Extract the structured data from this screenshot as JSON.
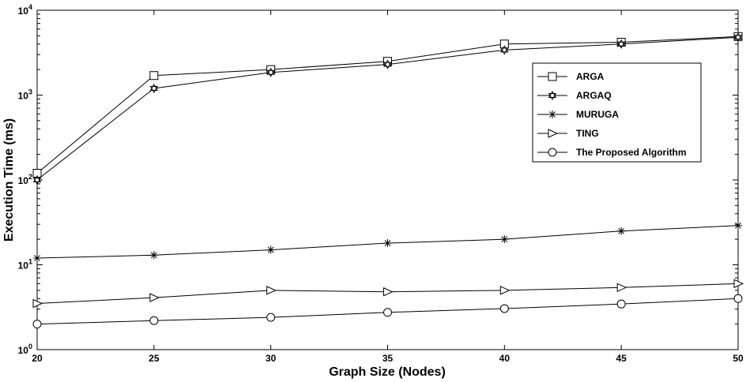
{
  "chart_data": {
    "type": "line",
    "xlabel": "Graph Size (Nodes)",
    "ylabel": "Execution Time (ms)",
    "x": [
      20,
      25,
      30,
      35,
      40,
      45,
      50
    ],
    "xlim": [
      20,
      50
    ],
    "ylim": [
      1,
      10000
    ],
    "yscale": "log",
    "x_ticks": [
      20,
      25,
      30,
      35,
      40,
      45,
      50
    ],
    "y_ticks": [
      {
        "value": 1,
        "base": "10",
        "exp": "0"
      },
      {
        "value": 10,
        "base": "10",
        "exp": "1"
      },
      {
        "value": 100,
        "base": "10",
        "exp": "2"
      },
      {
        "value": 1000,
        "base": "10",
        "exp": "3"
      },
      {
        "value": 10000,
        "base": "10",
        "exp": "4"
      }
    ],
    "grid": false,
    "legend_position": "upper-right",
    "series": [
      {
        "name": "ARGA",
        "marker": "square",
        "values": [
          120,
          1700,
          2000,
          2500,
          4000,
          4200,
          4900
        ]
      },
      {
        "name": "ARGAQ",
        "marker": "hexagram",
        "values": [
          100,
          1200,
          1850,
          2300,
          3400,
          4000,
          4800
        ]
      },
      {
        "name": "MURUGA",
        "marker": "asterisk",
        "values": [
          12,
          13,
          15,
          18,
          20,
          25,
          29
        ]
      },
      {
        "name": "TING",
        "marker": "triangle-right",
        "values": [
          3.5,
          4.1,
          5.0,
          4.8,
          5.0,
          5.4,
          6.0
        ]
      },
      {
        "name": "The Proposed Algorithm",
        "marker": "circle",
        "values": [
          2.0,
          2.2,
          2.4,
          2.75,
          3.05,
          3.45,
          4.0
        ]
      }
    ]
  }
}
